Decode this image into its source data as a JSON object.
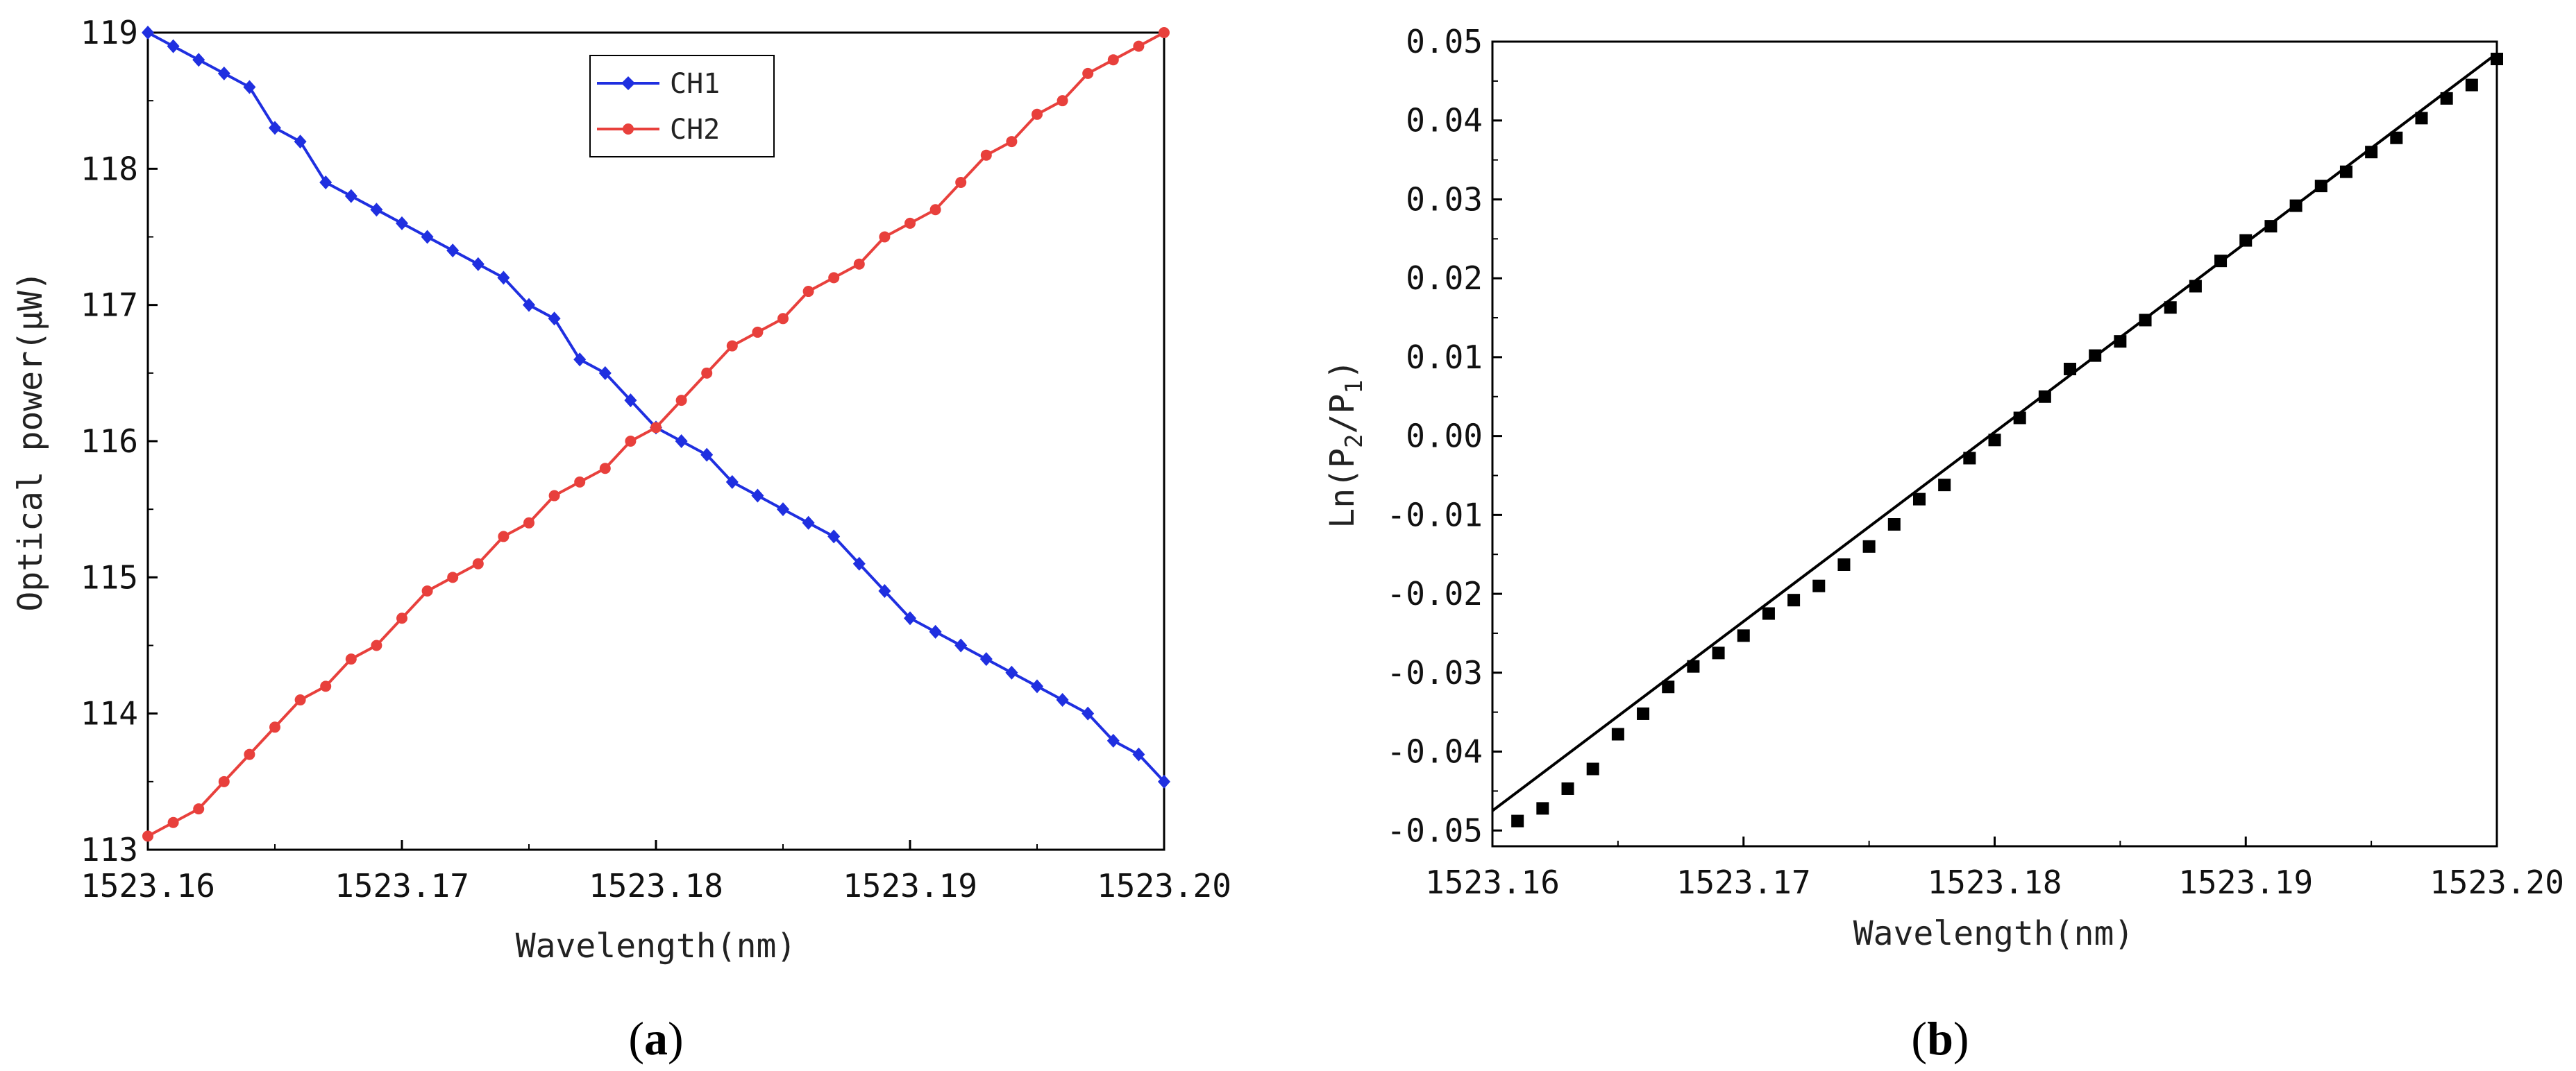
{
  "chart_data": [
    {
      "id": "a",
      "type": "line",
      "caption_open": "(",
      "caption_letter": "a",
      "caption_close": ")",
      "xlabel": "Wavelength(nm)",
      "ylabel": "Optical power(μW)",
      "xlim": [
        1523.16,
        1523.2
      ],
      "ylim": [
        113,
        119
      ],
      "xticks": [
        "1523.16",
        "1523.17",
        "1523.18",
        "1523.19",
        "1523.20"
      ],
      "yticks": [
        "113",
        "114",
        "115",
        "116",
        "117",
        "118",
        "119"
      ],
      "legend_position": "top-center",
      "series": [
        {
          "name": "CH1",
          "color": "#1f2fe0",
          "marker": "diamond",
          "x": [
            1523.16,
            1523.161,
            1523.162,
            1523.163,
            1523.164,
            1523.165,
            1523.166,
            1523.167,
            1523.168,
            1523.169,
            1523.17,
            1523.171,
            1523.172,
            1523.173,
            1523.174,
            1523.175,
            1523.176,
            1523.177,
            1523.178,
            1523.179,
            1523.18,
            1523.181,
            1523.182,
            1523.183,
            1523.184,
            1523.185,
            1523.186,
            1523.187,
            1523.188,
            1523.189,
            1523.19,
            1523.191,
            1523.192,
            1523.193,
            1523.194,
            1523.195,
            1523.196,
            1523.197,
            1523.198,
            1523.199,
            1523.2
          ],
          "values": [
            119.0,
            118.9,
            118.8,
            118.7,
            118.6,
            118.3,
            118.2,
            117.9,
            117.8,
            117.7,
            117.6,
            117.5,
            117.4,
            117.3,
            117.2,
            117.0,
            116.9,
            116.6,
            116.5,
            116.3,
            116.1,
            116.0,
            115.9,
            115.7,
            115.6,
            115.5,
            115.4,
            115.3,
            115.1,
            114.9,
            114.7,
            114.6,
            114.5,
            114.4,
            114.3,
            114.2,
            114.1,
            114.0,
            113.8,
            113.7,
            113.5
          ]
        },
        {
          "name": "CH2",
          "color": "#e8403c",
          "marker": "circle",
          "x": [
            1523.16,
            1523.161,
            1523.162,
            1523.163,
            1523.164,
            1523.165,
            1523.166,
            1523.167,
            1523.168,
            1523.169,
            1523.17,
            1523.171,
            1523.172,
            1523.173,
            1523.174,
            1523.175,
            1523.176,
            1523.177,
            1523.178,
            1523.179,
            1523.18,
            1523.181,
            1523.182,
            1523.183,
            1523.184,
            1523.185,
            1523.186,
            1523.187,
            1523.188,
            1523.189,
            1523.19,
            1523.191,
            1523.192,
            1523.193,
            1523.194,
            1523.195,
            1523.196,
            1523.197,
            1523.198,
            1523.199,
            1523.2
          ],
          "values": [
            113.1,
            113.2,
            113.3,
            113.5,
            113.7,
            113.9,
            114.1,
            114.2,
            114.4,
            114.5,
            114.7,
            114.9,
            115.0,
            115.1,
            115.3,
            115.4,
            115.6,
            115.7,
            115.8,
            116.0,
            116.1,
            116.3,
            116.5,
            116.7,
            116.8,
            116.9,
            117.1,
            117.2,
            117.3,
            117.5,
            117.6,
            117.7,
            117.9,
            118.1,
            118.2,
            118.4,
            118.5,
            118.7,
            118.8,
            118.9,
            119.0
          ]
        }
      ]
    },
    {
      "id": "b",
      "type": "scatter",
      "caption_open": "(",
      "caption_letter": "b",
      "caption_close": ")",
      "xlabel": "Wavelength(nm)",
      "ylabel_prefix": "Ln(P",
      "ylabel_sub1": "2",
      "ylabel_mid": "/P",
      "ylabel_sub2": "1",
      "ylabel_suffix": ")",
      "xlim": [
        1523.16,
        1523.2
      ],
      "ylim": [
        -0.052,
        0.05
      ],
      "xticks": [
        "1523.16",
        "1523.17",
        "1523.18",
        "1523.19",
        "1523.20"
      ],
      "yticks": [
        "-0.05",
        "-0.04",
        "-0.03",
        "-0.02",
        "-0.01",
        "0.00",
        "0.01",
        "0.02",
        "0.03",
        "0.04",
        "0.05"
      ],
      "marker_color": "#000000",
      "fit_line": {
        "x": [
          1523.16,
          1523.2
        ],
        "y": [
          -0.0475,
          0.0485
        ]
      },
      "series": [
        {
          "name": "data",
          "x": [
            1523.161,
            1523.162,
            1523.163,
            1523.164,
            1523.165,
            1523.166,
            1523.167,
            1523.168,
            1523.169,
            1523.17,
            1523.171,
            1523.172,
            1523.173,
            1523.174,
            1523.175,
            1523.176,
            1523.177,
            1523.178,
            1523.179,
            1523.18,
            1523.181,
            1523.182,
            1523.183,
            1523.184,
            1523.185,
            1523.186,
            1523.187,
            1523.188,
            1523.189,
            1523.19,
            1523.191,
            1523.192,
            1523.193,
            1523.194,
            1523.195,
            1523.196,
            1523.197,
            1523.198,
            1523.199,
            1523.2
          ],
          "values": [
            -0.0488,
            -0.0472,
            -0.0447,
            -0.0422,
            -0.0378,
            -0.0352,
            -0.0318,
            -0.0292,
            -0.0275,
            -0.0253,
            -0.0225,
            -0.0208,
            -0.019,
            -0.0163,
            -0.014,
            -0.0112,
            -0.008,
            -0.0062,
            -0.0028,
            -0.0005,
            0.0023,
            0.005,
            0.0085,
            0.0102,
            0.012,
            0.0147,
            0.0163,
            0.019,
            0.0222,
            0.0248,
            0.0266,
            0.0292,
            0.0317,
            0.0335,
            0.036,
            0.0378,
            0.0403,
            0.0428,
            0.0445,
            0.0478
          ]
        }
      ]
    }
  ]
}
